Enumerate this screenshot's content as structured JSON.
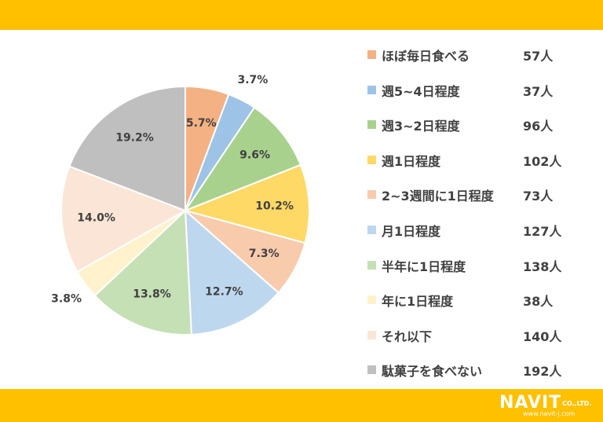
{
  "chart_data": {
    "type": "pie",
    "start_angle": "12 o'clock",
    "direction": "clockwise",
    "slices": [
      {
        "name": "ほぼ毎日食べる",
        "value": 57,
        "count_label": "57人",
        "percent_label": "5.7%",
        "color": "#F4B183",
        "label_outside": false
      },
      {
        "name": "週5~4日程度",
        "value": 37,
        "count_label": "37人",
        "percent_label": "3.7%",
        "color": "#9DC3E6",
        "label_outside": true
      },
      {
        "name": "週3~2日程度",
        "value": 96,
        "count_label": "96人",
        "percent_label": "9.6%",
        "color": "#A9D18E",
        "label_outside": false
      },
      {
        "name": "週1日程度",
        "value": 102,
        "count_label": "102人",
        "percent_label": "10.2%",
        "color": "#FFD966",
        "label_outside": false
      },
      {
        "name": "2~3週間に1日程度",
        "value": 73,
        "count_label": "73人",
        "percent_label": "7.3%",
        "color": "#F8CBAD",
        "label_outside": false
      },
      {
        "name": "月1日程度",
        "value": 127,
        "count_label": "127人",
        "percent_label": "12.7%",
        "color": "#BDD7EE",
        "label_outside": false
      },
      {
        "name": "半年に1日程度",
        "value": 138,
        "count_label": "138人",
        "percent_label": "13.8%",
        "color": "#C5E0B4",
        "label_outside": false
      },
      {
        "name": "年に1日程度",
        "value": 38,
        "count_label": "38人",
        "percent_label": "3.8%",
        "color": "#FFF2CC",
        "label_outside": true
      },
      {
        "name": "それ以下",
        "value": 140,
        "count_label": "140人",
        "percent_label": "14.0%",
        "color": "#FBE5D6",
        "label_outside": false
      },
      {
        "name": "駄菓子を食べない",
        "value": 192,
        "count_label": "192人",
        "percent_label": "19.2%",
        "color": "#BFBFBF",
        "label_outside": false
      }
    ],
    "legend_position": "right"
  },
  "brand": {
    "logo_text": "NAVIT",
    "logo_suffix": "CO.,LTD.",
    "logo_url": "www.navit-j.com",
    "bar_color": "#FFC000"
  }
}
